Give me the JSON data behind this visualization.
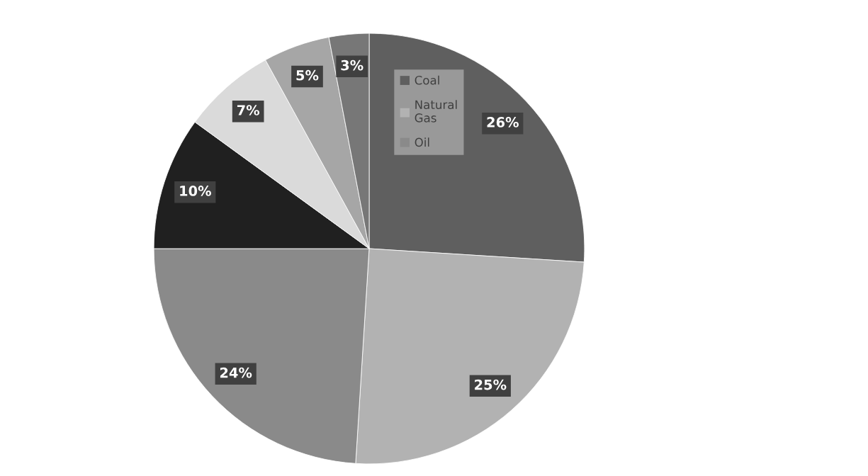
{
  "chart_data": {
    "type": "pie",
    "categories": [
      "Coal",
      "Natural\nGas",
      "Oil",
      null,
      null,
      null,
      null
    ],
    "values": [
      26,
      25,
      24,
      10,
      7,
      5,
      3
    ],
    "colors": [
      "#5f5f5f",
      "#b2b2b2",
      "#8a8a8a",
      "#202020",
      "#dadada",
      "#a6a6a6",
      "#777777"
    ],
    "value_labels": [
      "26%",
      "25%",
      "24%",
      "10%",
      "7%",
      "5%",
      "3%"
    ],
    "legend": "top"
  }
}
